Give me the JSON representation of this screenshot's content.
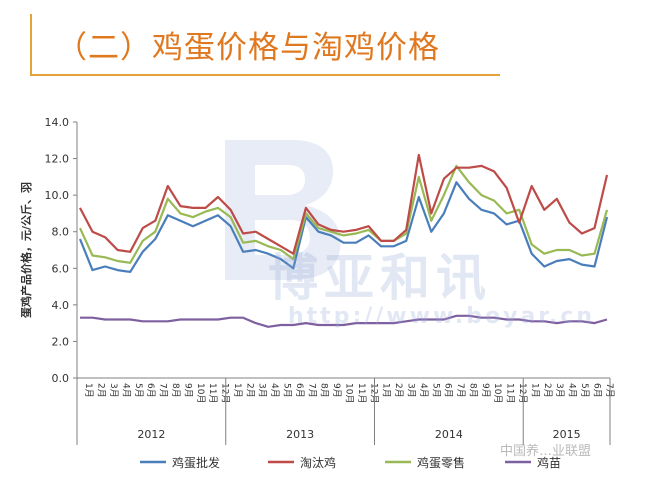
{
  "header": {
    "title": "（二）鸡蛋价格与淘鸡价格"
  },
  "watermark": {
    "text": "博亚和讯",
    "url": "http://www.boyar.cn"
  },
  "footer": {
    "text": "中国养…业联盟"
  },
  "chart_data": {
    "type": "line",
    "ylabel": "蛋鸡产品价格，元/公斤、羽",
    "ylim": [
      0,
      14
    ],
    "yticks": [
      "0.0",
      "2.0",
      "4.0",
      "6.0",
      "8.0",
      "10.0",
      "12.0",
      "14.0"
    ],
    "grid": false,
    "legend_position": "bottom",
    "years": [
      "2012",
      "2013",
      "2014",
      "2015"
    ],
    "months": {
      "2012": [
        "1月",
        "2月",
        "3月",
        "4月",
        "5月",
        "6月",
        "7月",
        "8月",
        "9月",
        "10月",
        "11月",
        "12月"
      ],
      "2013": [
        "1月",
        "2月",
        "3月",
        "4月",
        "5月",
        "6月",
        "7月",
        "8月",
        "9月",
        "10月",
        "11月",
        "12月"
      ],
      "2014": [
        "1月",
        "2月",
        "3月",
        "4月",
        "5月",
        "6月",
        "7月",
        "8月",
        "9月",
        "10月",
        "11月",
        "12月"
      ],
      "2015": [
        "1月",
        "2月",
        "3月",
        "4月",
        "5月",
        "6月",
        "7月"
      ]
    },
    "series": [
      {
        "name": "鸡蛋批发",
        "color": "#4a7ebb",
        "values": [
          7.6,
          5.9,
          6.1,
          5.9,
          5.8,
          6.9,
          7.6,
          8.9,
          8.6,
          8.3,
          8.6,
          8.9,
          8.3,
          6.9,
          7.0,
          6.8,
          6.5,
          6.0,
          8.8,
          8.0,
          7.8,
          7.4,
          7.4,
          7.8,
          7.2,
          7.2,
          7.5,
          9.9,
          8.0,
          9.0,
          10.7,
          9.8,
          9.2,
          9.0,
          8.4,
          8.6,
          6.8,
          6.1,
          6.4,
          6.5,
          6.2,
          6.1,
          8.8
        ]
      },
      {
        "name": "淘汰鸡",
        "color": "#be4b48",
        "values": [
          9.3,
          8.0,
          7.7,
          7.0,
          6.9,
          8.2,
          8.6,
          10.5,
          9.4,
          9.3,
          9.3,
          9.9,
          9.2,
          7.9,
          8.0,
          7.6,
          7.2,
          6.8,
          9.3,
          8.4,
          8.1,
          8.0,
          8.1,
          8.3,
          7.5,
          7.5,
          8.1,
          12.2,
          9.0,
          10.9,
          11.5,
          11.5,
          11.6,
          11.3,
          10.4,
          8.5,
          10.5,
          9.2,
          9.8,
          8.5,
          7.9,
          8.2,
          11.1
        ]
      },
      {
        "name": "鸡蛋零售",
        "color": "#98b954",
        "values": [
          8.2,
          6.7,
          6.6,
          6.4,
          6.3,
          7.5,
          8.0,
          9.8,
          9.0,
          8.8,
          9.1,
          9.3,
          8.8,
          7.4,
          7.5,
          7.2,
          7.0,
          6.5,
          9.0,
          8.2,
          8.0,
          7.8,
          7.9,
          8.1,
          7.5,
          7.5,
          7.9,
          11.0,
          8.6,
          10.0,
          11.6,
          10.7,
          10.0,
          9.7,
          9.0,
          9.2,
          7.3,
          6.8,
          7.0,
          7.0,
          6.7,
          6.8,
          9.2
        ]
      },
      {
        "name": "鸡苗",
        "color": "#7e60a0",
        "values": [
          3.3,
          3.3,
          3.2,
          3.2,
          3.2,
          3.1,
          3.1,
          3.1,
          3.2,
          3.2,
          3.2,
          3.2,
          3.3,
          3.3,
          3.0,
          2.8,
          2.9,
          2.9,
          3.0,
          2.9,
          2.9,
          2.9,
          3.0,
          3.0,
          3.0,
          3.0,
          3.1,
          3.2,
          3.2,
          3.2,
          3.4,
          3.4,
          3.3,
          3.3,
          3.2,
          3.2,
          3.1,
          3.1,
          3.0,
          3.1,
          3.1,
          3.0,
          3.2
        ]
      }
    ]
  }
}
